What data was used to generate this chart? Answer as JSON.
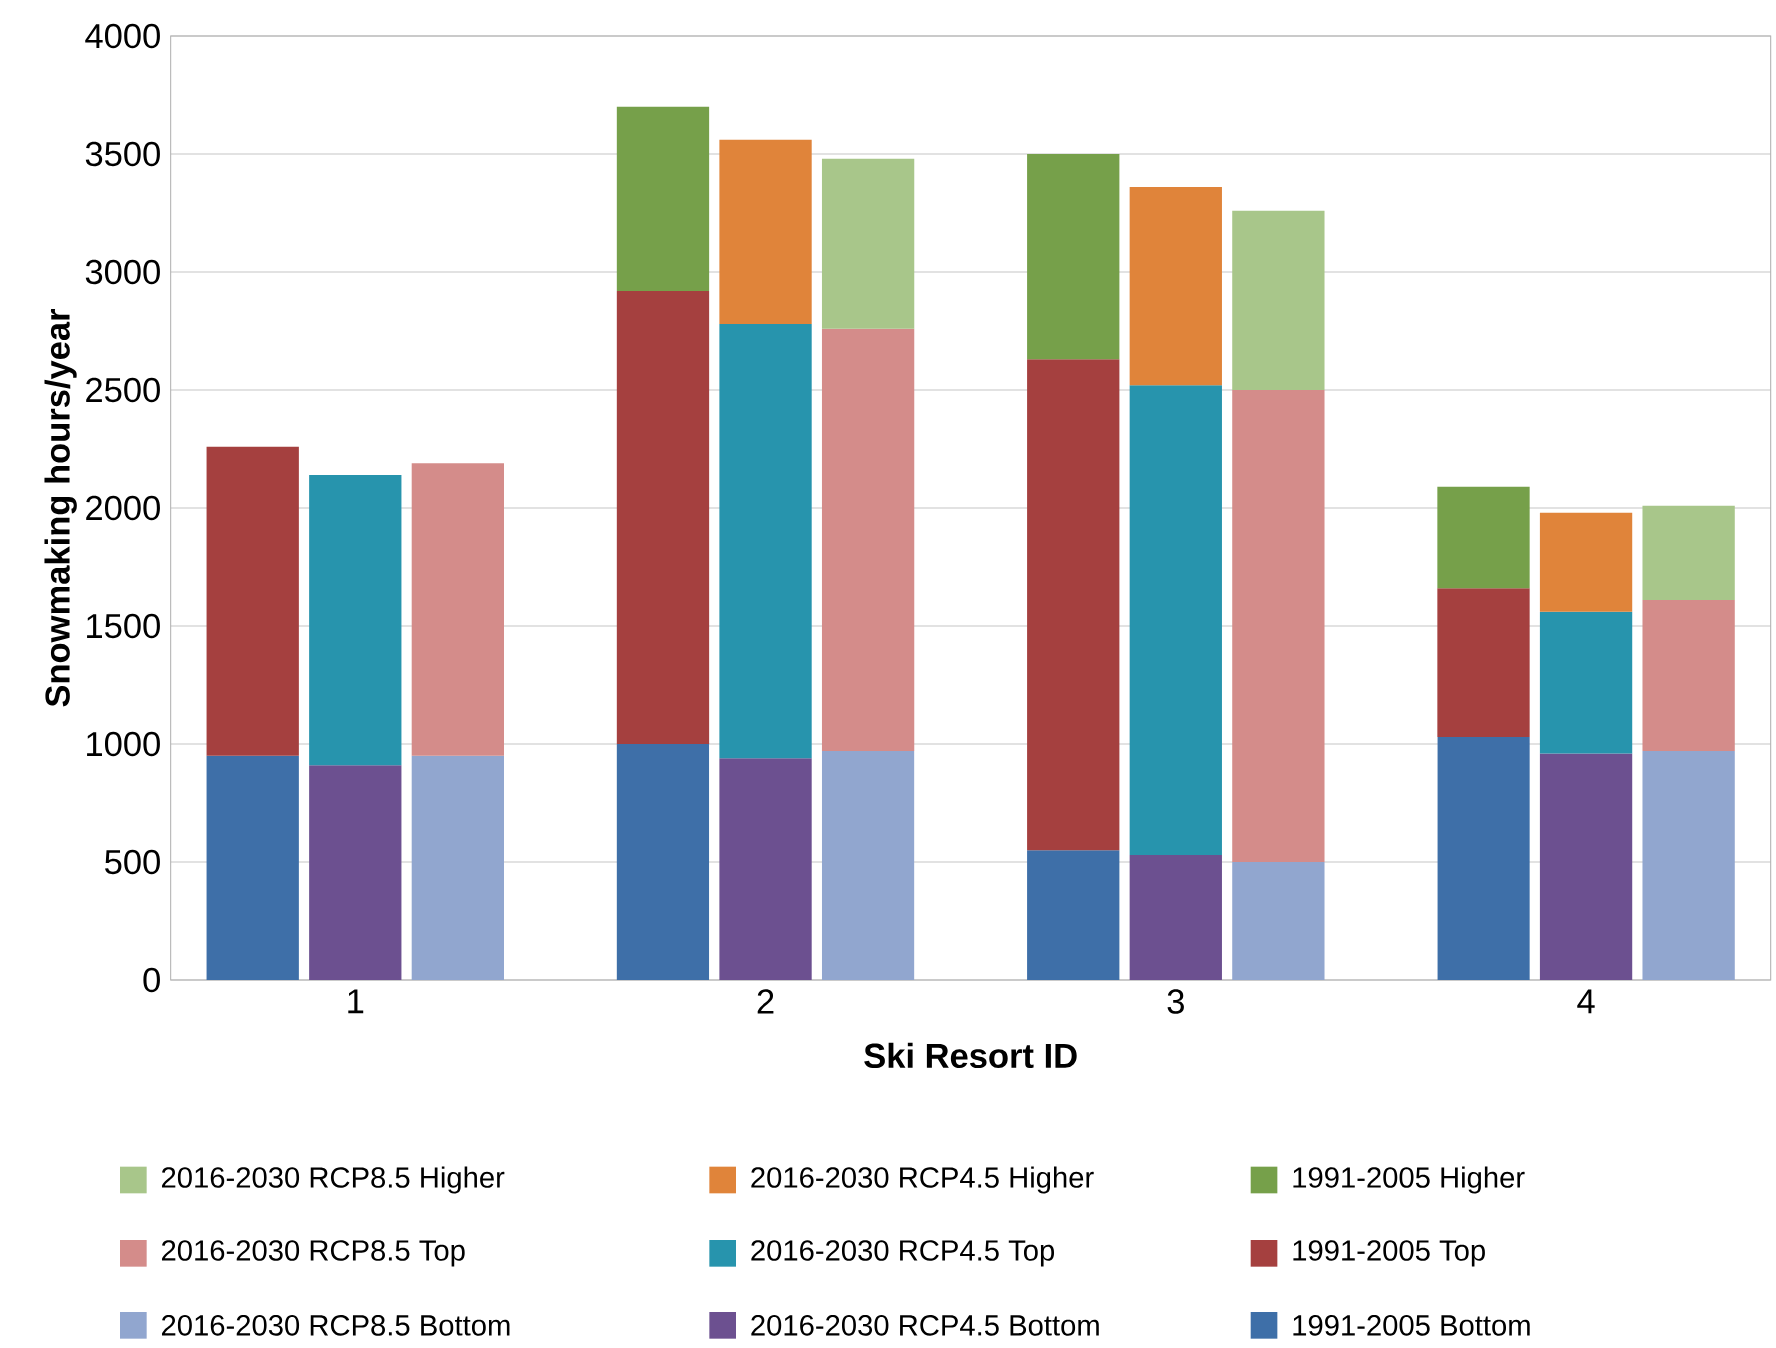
{
  "chart_data": {
    "type": "bar",
    "stacked": true,
    "xlabel": "Ski Resort ID",
    "ylabel": "Snowmaking hours/year",
    "categories": [
      null,
      "1",
      null,
      null,
      "2",
      null,
      null,
      "3",
      null,
      null,
      "4",
      null
    ],
    "ylim": [
      0,
      4000
    ],
    "yticks": [
      0,
      500,
      1000,
      1500,
      2000,
      2500,
      3000,
      3500,
      4000
    ],
    "grid": "y",
    "legend": "bottom",
    "series": [
      {
        "name": "1991-2005 Bottom",
        "color": "#3e6fa8",
        "values": [
          950,
          null,
          null,
          1000,
          null,
          null,
          550,
          null,
          null,
          1030,
          null,
          null
        ]
      },
      {
        "name": "1991-2005 Top",
        "color": "#a5403f",
        "values": [
          1310,
          null,
          null,
          1920,
          null,
          null,
          2080,
          null,
          null,
          630,
          null,
          null
        ]
      },
      {
        "name": "1991-2005 Higher",
        "color": "#76a04a",
        "values": [
          null,
          null,
          null,
          780,
          null,
          null,
          870,
          null,
          null,
          430,
          null,
          null
        ]
      },
      {
        "name": "2016-2030 RCP4.5 Bottom",
        "color": "#6c5090",
        "values": [
          null,
          910,
          null,
          null,
          940,
          null,
          null,
          530,
          null,
          null,
          960,
          null
        ]
      },
      {
        "name": "2016-2030 RCP4.5 Top",
        "color": "#2794ad",
        "values": [
          null,
          1230,
          null,
          null,
          1840,
          null,
          null,
          1990,
          null,
          null,
          600,
          null
        ]
      },
      {
        "name": "2016-2030 RCP4.5 Higher",
        "color": "#e0843a",
        "values": [
          null,
          null,
          null,
          null,
          780,
          null,
          null,
          840,
          null,
          null,
          420,
          null
        ]
      },
      {
        "name": "2016-2030 RCP8.5 Bottom",
        "color": "#91a6cf",
        "values": [
          null,
          null,
          950,
          null,
          null,
          970,
          null,
          null,
          500,
          null,
          null,
          970
        ]
      },
      {
        "name": "2016-2030 RCP8.5 Top",
        "color": "#d48c8a",
        "values": [
          null,
          null,
          1240,
          null,
          null,
          1790,
          null,
          null,
          2000,
          null,
          null,
          640
        ]
      },
      {
        "name": "2016-2030 RCP8.5 Higher",
        "color": "#a8c68a",
        "values": [
          null,
          null,
          null,
          null,
          null,
          720,
          null,
          null,
          760,
          null,
          null,
          400
        ]
      }
    ]
  }
}
